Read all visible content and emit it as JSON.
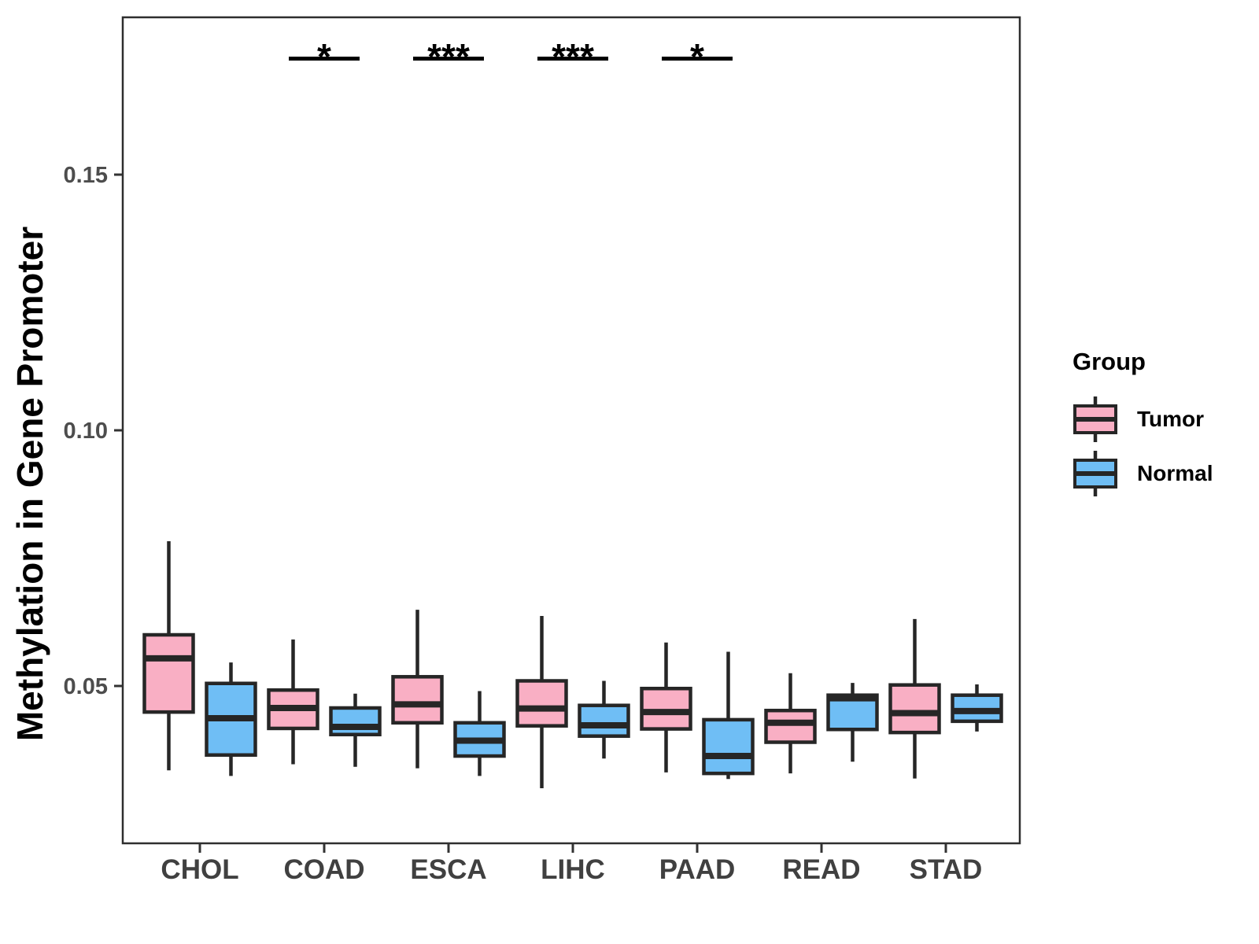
{
  "chart_data": {
    "type": "boxplot",
    "title": "",
    "xlabel": "",
    "ylabel": "Methylation in Gene Promoter",
    "categories": [
      "CHOL",
      "COAD",
      "ESCA",
      "LIHC",
      "PAAD",
      "READ",
      "STAD"
    ],
    "y_ticks": [
      0.05,
      0.1,
      0.15
    ],
    "y_tick_labels": [
      "0.05",
      "0.10",
      "0.15"
    ],
    "ylim": [
      0.019,
      0.181
    ],
    "grid": false,
    "legend": {
      "title": "Group",
      "position": "right",
      "entries": [
        "Tumor",
        "Normal"
      ]
    },
    "groups": [
      {
        "name": "Tumor",
        "fill": "#F9AFC4"
      },
      {
        "name": "Normal",
        "fill": "#6FBEF5"
      }
    ],
    "series": [
      {
        "name": "Tumor",
        "boxes": [
          {
            "category": "CHOL",
            "whisker_low": 0.0335,
            "q1": 0.0449,
            "median": 0.0554,
            "q3": 0.06,
            "whisker_high": 0.0783
          },
          {
            "category": "COAD",
            "whisker_low": 0.0347,
            "q1": 0.0417,
            "median": 0.0457,
            "q3": 0.0492,
            "whisker_high": 0.0591
          },
          {
            "category": "ESCA",
            "whisker_low": 0.0339,
            "q1": 0.0428,
            "median": 0.0464,
            "q3": 0.0518,
            "whisker_high": 0.0649
          },
          {
            "category": "LIHC",
            "whisker_low": 0.03,
            "q1": 0.0422,
            "median": 0.0456,
            "q3": 0.051,
            "whisker_high": 0.0637
          },
          {
            "category": "PAAD",
            "whisker_low": 0.0331,
            "q1": 0.0416,
            "median": 0.0449,
            "q3": 0.0495,
            "whisker_high": 0.0585
          },
          {
            "category": "READ",
            "whisker_low": 0.0329,
            "q1": 0.039,
            "median": 0.0428,
            "q3": 0.0452,
            "whisker_high": 0.0525
          },
          {
            "category": "STAD",
            "whisker_low": 0.0319,
            "q1": 0.0409,
            "median": 0.0447,
            "q3": 0.0502,
            "whisker_high": 0.0631
          }
        ]
      },
      {
        "name": "Normal",
        "boxes": [
          {
            "category": "CHOL",
            "whisker_low": 0.0324,
            "q1": 0.0365,
            "median": 0.0437,
            "q3": 0.0505,
            "whisker_high": 0.0546
          },
          {
            "category": "COAD",
            "whisker_low": 0.0342,
            "q1": 0.0405,
            "median": 0.042,
            "q3": 0.0457,
            "whisker_high": 0.0485
          },
          {
            "category": "ESCA",
            "whisker_low": 0.0324,
            "q1": 0.0363,
            "median": 0.0393,
            "q3": 0.0428,
            "whisker_high": 0.049
          },
          {
            "category": "LIHC",
            "whisker_low": 0.0358,
            "q1": 0.0402,
            "median": 0.0423,
            "q3": 0.0462,
            "whisker_high": 0.051
          },
          {
            "category": "PAAD",
            "whisker_low": 0.0318,
            "q1": 0.0329,
            "median": 0.0363,
            "q3": 0.0434,
            "whisker_high": 0.0567
          },
          {
            "category": "READ",
            "whisker_low": 0.0352,
            "q1": 0.0415,
            "median": 0.0476,
            "q3": 0.0482,
            "whisker_high": 0.0506
          },
          {
            "category": "STAD",
            "whisker_low": 0.0411,
            "q1": 0.0431,
            "median": 0.0451,
            "q3": 0.0482,
            "whisker_high": 0.0503
          }
        ]
      }
    ],
    "significance": [
      {
        "category": "COAD",
        "label": "*"
      },
      {
        "category": "ESCA",
        "label": "***"
      },
      {
        "category": "LIHC",
        "label": "***"
      },
      {
        "category": "PAAD",
        "label": "*"
      }
    ]
  },
  "colors": {
    "box_outline": "#262626",
    "median": "#262626",
    "panel_border": "#2e2e2e",
    "tick": "#333333",
    "y_tick_text": "#4d4d4d",
    "x_label_text": "#404040",
    "significance": "#000000"
  }
}
